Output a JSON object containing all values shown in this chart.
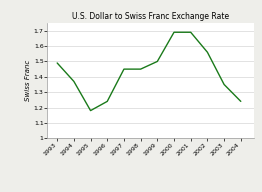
{
  "title": "U.S. Dollar to Swiss Franc Exchange Rate",
  "ylabel": "Swiss Franc",
  "years": [
    1993,
    1994,
    1995,
    1996,
    1997,
    1998,
    1999,
    2000,
    2001,
    2002,
    2003,
    2004
  ],
  "values": [
    1.49,
    1.37,
    1.18,
    1.24,
    1.45,
    1.45,
    1.5,
    1.69,
    1.69,
    1.56,
    1.35,
    1.24
  ],
  "line_color": "#1a7a1a",
  "ylim": [
    1.0,
    1.75
  ],
  "yticks": [
    1.0,
    1.1,
    1.2,
    1.3,
    1.4,
    1.5,
    1.6,
    1.7
  ],
  "ytick_labels": [
    "1",
    "1.1",
    "1.2",
    "1.3",
    "1.4",
    "1.5",
    "1.6",
    "1.7"
  ],
  "bg_color": "#eeeeea",
  "plot_bg": "#ffffff",
  "title_fontsize": 5.5,
  "axis_fontsize": 4.5,
  "label_fontsize": 5.0,
  "line_width": 1.0
}
